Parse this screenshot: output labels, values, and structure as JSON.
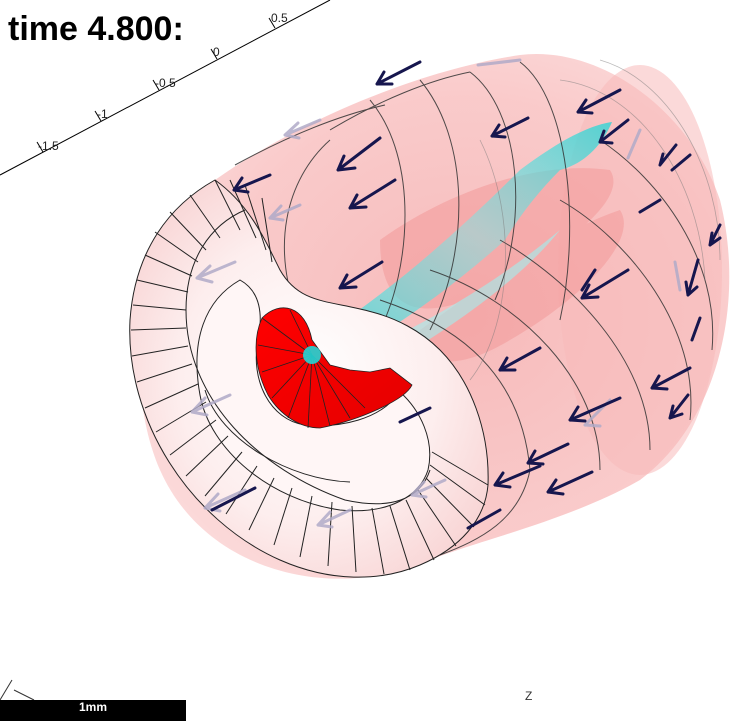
{
  "time_label": "time 4.800:",
  "axis": {
    "ticks": [
      "-1.5",
      "-1",
      "-0.5",
      "0",
      "0.5"
    ],
    "z_label": "Z"
  },
  "scale_bar": {
    "label": "1mm"
  },
  "colors": {
    "background": "#ffffff",
    "tube_pink": "#f8c2c2",
    "tube_front_face": "#fde6e6",
    "hot_red": "#ee0000",
    "cyan": "#22d6d6",
    "arrow_navy": "#16164e",
    "arrow_faint": "#b0aac8",
    "mesh_line": "#222222"
  },
  "icons": {
    "arrows": "vector-field-arrow-icon"
  }
}
